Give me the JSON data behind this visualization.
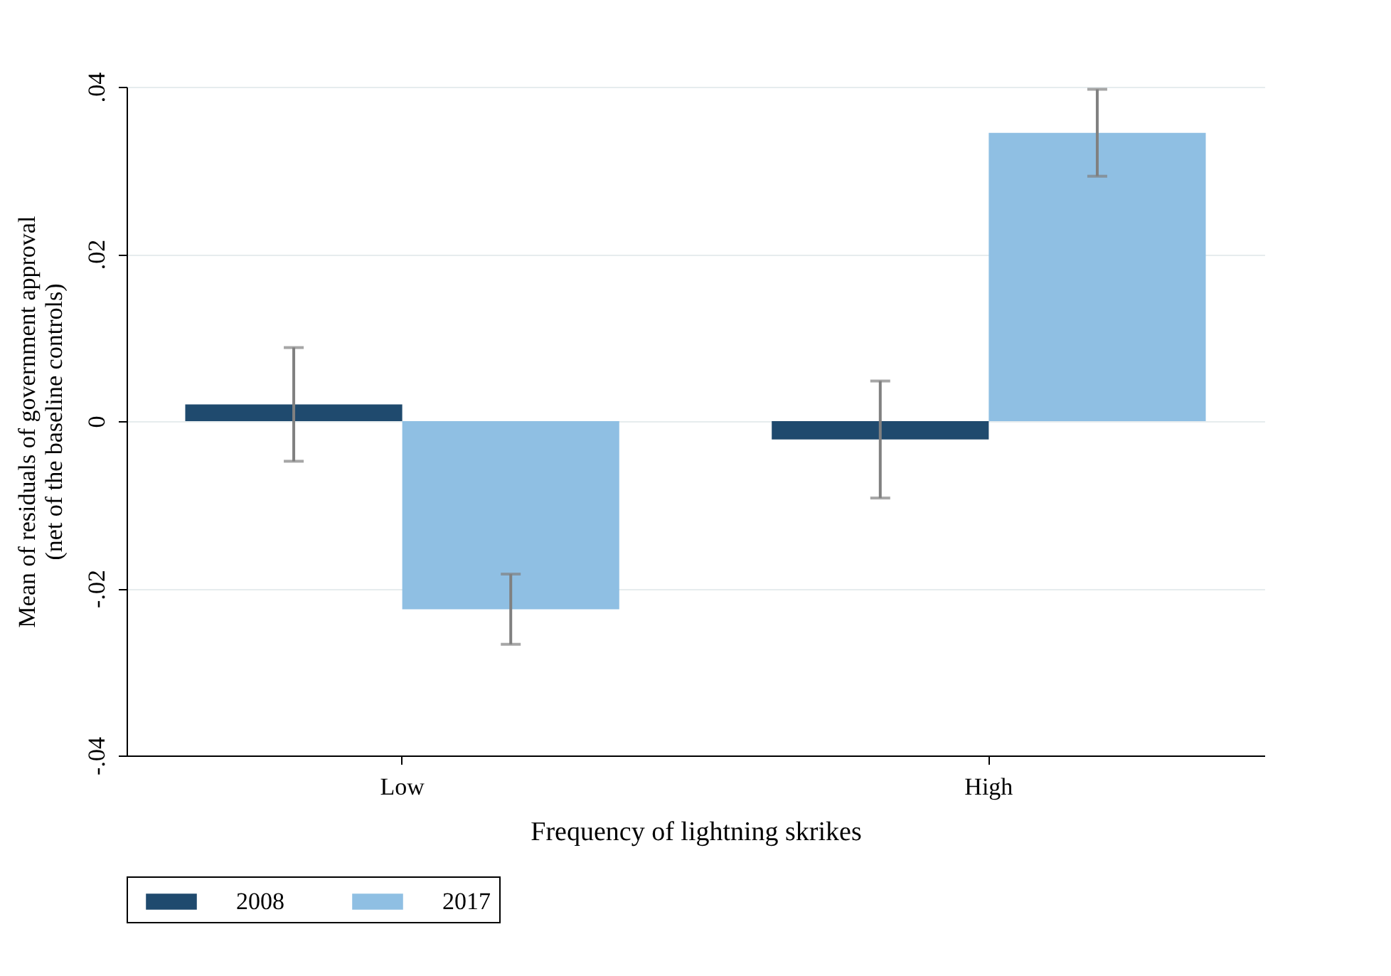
{
  "chart_data": {
    "type": "bar",
    "xlabel": "Frequency of lightning skrikes",
    "ylabel": "Mean of residuals of government approval\n(net of the baseline controls)",
    "categories": [
      "Low",
      "High"
    ],
    "series": [
      {
        "name": "2008",
        "color": "#1f4a6e",
        "values": [
          0.002,
          -0.0022
        ],
        "errors": [
          0.0068,
          0.007
        ]
      },
      {
        "name": "2017",
        "color": "#8fbfe3",
        "values": [
          -0.0225,
          0.0345
        ],
        "errors": [
          0.0042,
          0.0052
        ]
      }
    ],
    "ylim": [
      -0.04,
      0.04
    ],
    "yticks": [
      {
        "value": -0.04,
        "label": "-.04"
      },
      {
        "value": -0.02,
        "label": "-.02"
      },
      0,
      {
        "value": 0.02,
        "label": ".02"
      },
      {
        "value": 0.04,
        "label": ".04"
      }
    ],
    "grid": "y",
    "legend": "bottom"
  }
}
